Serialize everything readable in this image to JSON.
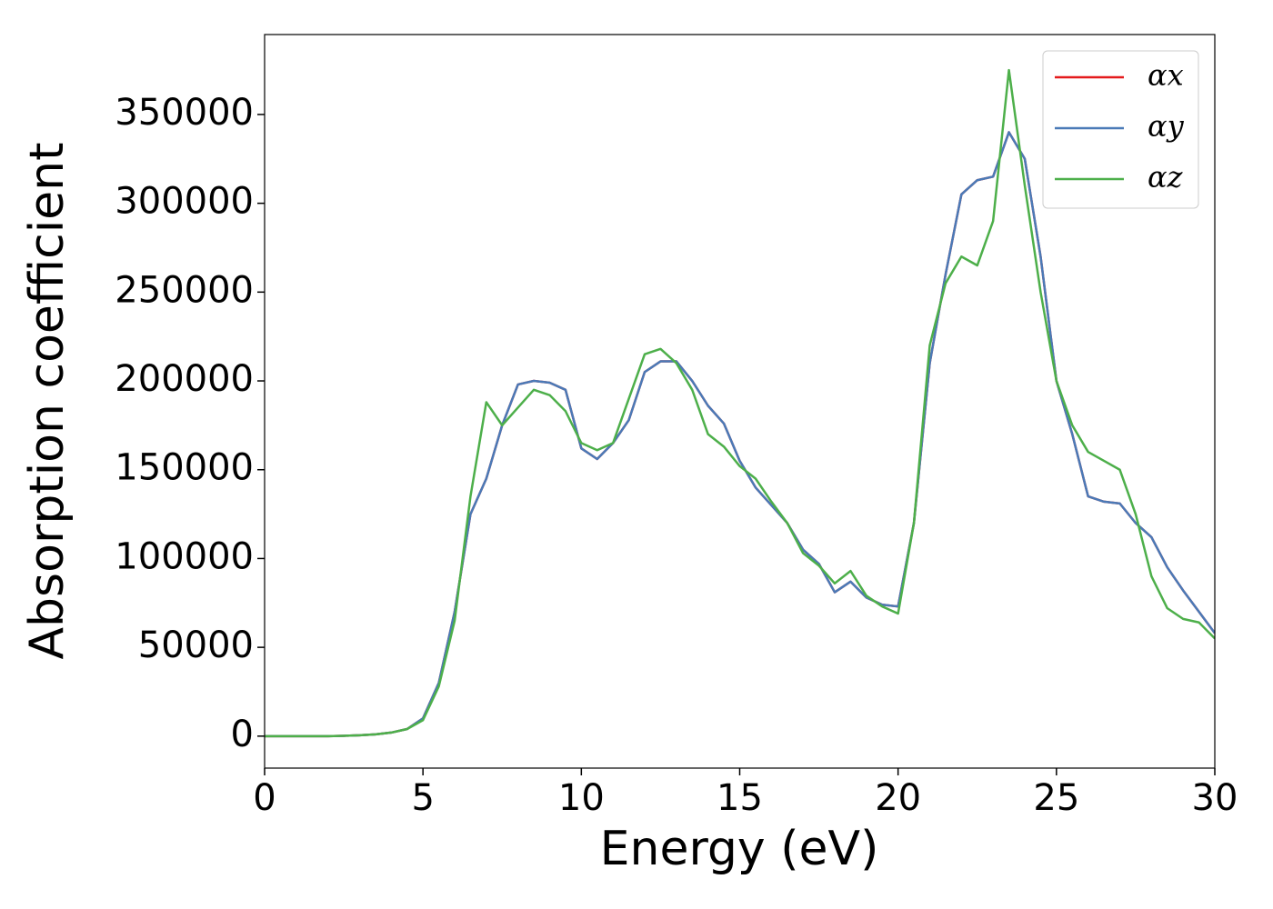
{
  "chart_data": {
    "type": "line",
    "x_label": "Energy (eV)",
    "y_label": "Absorption coefficient",
    "x": [
      0,
      0.5,
      1,
      1.5,
      2,
      2.5,
      3,
      3.5,
      4,
      4.5,
      5,
      5.5,
      6,
      6.5,
      7,
      7.5,
      8,
      8.5,
      9,
      9.5,
      10,
      10.5,
      11,
      11.5,
      12,
      12.5,
      13,
      13.5,
      14,
      14.5,
      15,
      15.5,
      16,
      16.5,
      17,
      17.5,
      18,
      18.5,
      19,
      19.5,
      20,
      20.5,
      21,
      21.5,
      22,
      22.5,
      23,
      23.5,
      24,
      24.5,
      25,
      25.5,
      26,
      26.5,
      27,
      27.5,
      28,
      28.5,
      29,
      29.5,
      30
    ],
    "series": [
      {
        "name": "αx",
        "color": "#e41a1c",
        "values": [
          0,
          0,
          0,
          0,
          0,
          200,
          500,
          1000,
          2000,
          4000,
          10000,
          30000,
          70000,
          125000,
          145000,
          175000,
          198000,
          200000,
          199000,
          195000,
          162000,
          156000,
          165000,
          178000,
          205000,
          211000,
          211000,
          200000,
          186000,
          176000,
          155000,
          140000,
          130000,
          120000,
          105000,
          97000,
          81000,
          87000,
          78000,
          74000,
          73000,
          120000,
          210000,
          260000,
          305000,
          313000,
          315000,
          340000,
          325000,
          270000,
          200000,
          170000,
          135000,
          132000,
          131000,
          120000,
          112000,
          95000,
          82000,
          70000,
          58000
        ]
      },
      {
        "name": "αy",
        "color": "#4a7ab7",
        "values": [
          0,
          0,
          0,
          0,
          0,
          200,
          500,
          1000,
          2000,
          4000,
          10000,
          30000,
          70000,
          125000,
          145000,
          175000,
          198000,
          200000,
          199000,
          195000,
          162000,
          156000,
          165000,
          178000,
          205000,
          211000,
          211000,
          200000,
          186000,
          176000,
          155000,
          140000,
          130000,
          120000,
          105000,
          97000,
          81000,
          87000,
          78000,
          74000,
          73000,
          120000,
          210000,
          260000,
          305000,
          313000,
          315000,
          340000,
          325000,
          270000,
          200000,
          170000,
          135000,
          132000,
          131000,
          120000,
          112000,
          95000,
          82000,
          70000,
          58000
        ]
      },
      {
        "name": "αz",
        "color": "#4daf4a",
        "values": [
          0,
          0,
          0,
          0,
          0,
          200,
          500,
          1000,
          2000,
          4000,
          9000,
          28000,
          65000,
          135000,
          188000,
          175000,
          185000,
          195000,
          192000,
          183000,
          165000,
          161000,
          165000,
          190000,
          215000,
          218000,
          210000,
          195000,
          170000,
          163000,
          152000,
          145000,
          132000,
          120000,
          103000,
          96000,
          86000,
          93000,
          79000,
          73000,
          69000,
          120000,
          220000,
          255000,
          270000,
          265000,
          290000,
          375000,
          310000,
          250000,
          200000,
          175000,
          160000,
          155000,
          150000,
          125000,
          90000,
          72000,
          66000,
          64000,
          55000
        ]
      }
    ],
    "xlim": [
      0,
      30
    ],
    "xticks": [
      0,
      5,
      10,
      15,
      20,
      25,
      30
    ],
    "ylim": [
      -18000,
      395000
    ],
    "yticks": [
      0,
      50000,
      100000,
      150000,
      200000,
      250000,
      300000,
      350000
    ],
    "legend": "upper right"
  }
}
